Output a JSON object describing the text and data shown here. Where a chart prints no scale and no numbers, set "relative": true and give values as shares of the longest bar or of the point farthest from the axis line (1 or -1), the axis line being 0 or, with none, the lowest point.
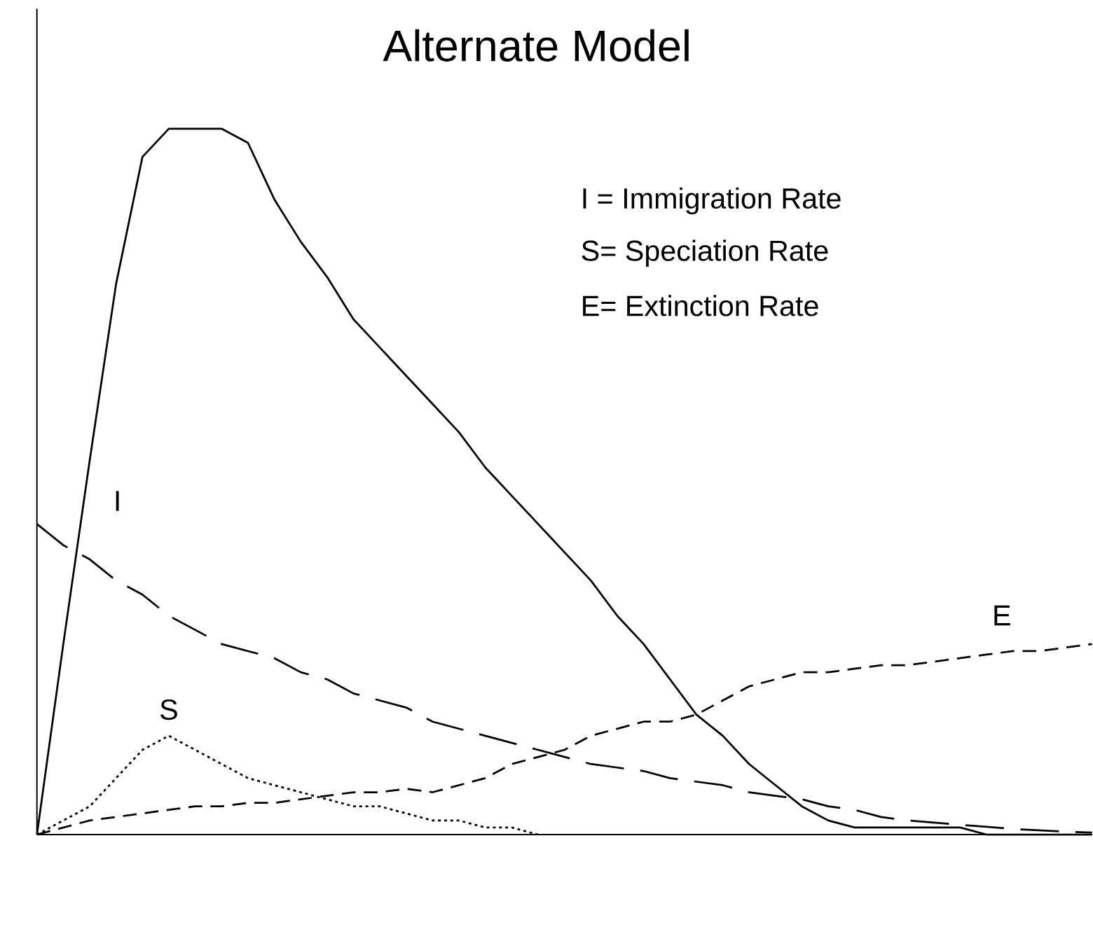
{
  "chart_data": {
    "type": "line",
    "title": "Alternate Model",
    "relative": true,
    "annotations": [
      "I = Immigration Rate",
      "S= Speciation Rate",
      "E= Extinction Rate"
    ],
    "categories": [
      null,
      null,
      null,
      null,
      null,
      null,
      null,
      null,
      null,
      null,
      null,
      null,
      null,
      null,
      null,
      null,
      null,
      null,
      null,
      null,
      null,
      null,
      null,
      null,
      null,
      null,
      null,
      null,
      null,
      null,
      null,
      null,
      null,
      null,
      null,
      null,
      null,
      null,
      null,
      null,
      null
    ],
    "series": [
      {
        "color": "#000000",
        "line_style": "solid",
        "values": [
          0,
          0.27,
          0.53,
          0.78,
          0.96,
          1,
          1,
          1,
          0.98,
          0.9,
          0.84,
          0.79,
          0.73,
          0.69,
          0.65,
          0.61,
          0.57,
          0.52,
          0.48,
          0.44,
          0.4,
          0.36,
          0.31,
          0.27,
          0.22,
          0.17,
          0.14,
          0.1,
          0.07,
          0.04,
          0.02,
          0.01,
          0.01,
          0.01,
          0.01,
          0.01,
          0,
          0,
          0,
          0,
          0
        ]
      },
      {
        "name": "I",
        "color": "#000000",
        "line_style": "dashed",
        "values": [
          0.44,
          0.41,
          0.39,
          0.36,
          0.34,
          0.31,
          0.29,
          0.27,
          0.26,
          0.25,
          0.23,
          0.22,
          0.2,
          0.19,
          0.18,
          0.16,
          0.15,
          0.14,
          0.13,
          0.12,
          0.11,
          0.1,
          0.095,
          0.09,
          0.08,
          0.075,
          0.07,
          0.06,
          0.055,
          0.05,
          0.04,
          0.035,
          0.025,
          0.02,
          0.017,
          0.014,
          0.011,
          0.008,
          0.006,
          0.004,
          0.003
        ]
      },
      {
        "name": "S",
        "color": "#000000",
        "line_style": "dotted",
        "values": [
          0,
          0.02,
          0.04,
          0.08,
          0.12,
          0.14,
          0.12,
          0.1,
          0.08,
          0.07,
          0.06,
          0.05,
          0.04,
          0.04,
          0.03,
          0.02,
          0.02,
          0.01,
          0.01,
          0,
          null,
          null,
          null,
          null,
          null,
          null,
          null,
          null,
          null,
          null,
          null,
          null,
          null,
          null,
          null,
          null,
          null,
          null,
          null,
          null,
          null
        ]
      },
      {
        "name": "E",
        "color": "#000000",
        "line_style": "dashed",
        "values": [
          0,
          0.01,
          0.02,
          0.025,
          0.03,
          0.035,
          0.04,
          0.04,
          0.045,
          0.045,
          0.05,
          0.055,
          0.06,
          0.06,
          0.065,
          0.06,
          0.07,
          0.08,
          0.1,
          0.11,
          0.12,
          0.14,
          0.15,
          0.16,
          0.16,
          0.17,
          0.19,
          0.21,
          0.22,
          0.23,
          0.23,
          0.235,
          0.24,
          0.24,
          0.245,
          0.25,
          0.255,
          0.26,
          0.26,
          0.265,
          0.27
        ]
      }
    ]
  }
}
